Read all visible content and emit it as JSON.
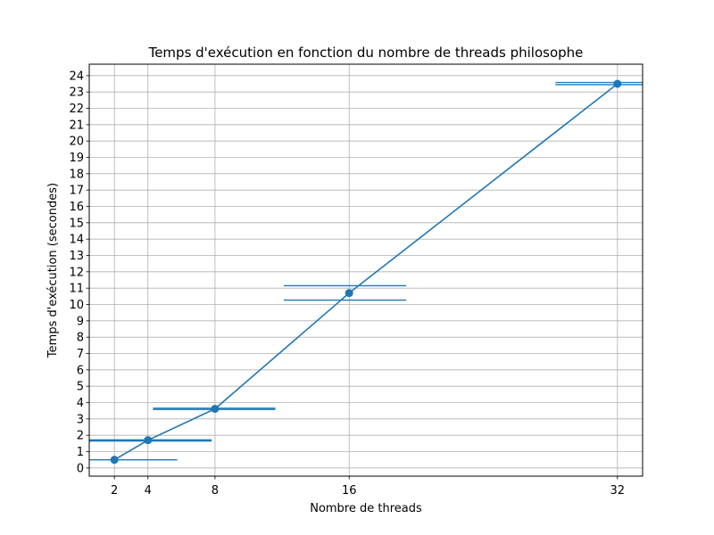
{
  "chart_data": {
    "type": "line",
    "title": "Temps d'exécution en fonction du nombre de threads philosophe",
    "xlabel": "Nombre de threads",
    "ylabel": "Temps d'exécution (secondes)",
    "xlim": [
      0.5,
      33.5
    ],
    "ylim": [
      -0.5,
      24.7
    ],
    "x_ticks": [
      2,
      4,
      8,
      16,
      32
    ],
    "y_ticks": [
      0,
      1,
      2,
      3,
      4,
      5,
      6,
      7,
      8,
      9,
      10,
      11,
      12,
      13,
      14,
      15,
      16,
      17,
      18,
      19,
      20,
      21,
      22,
      23,
      24
    ],
    "grid": true,
    "series": [
      {
        "color": "#1f77b4",
        "marker": "circle",
        "x": [
          2,
          4,
          8,
          16,
          32
        ],
        "y": [
          0.5,
          1.7,
          3.62,
          10.7,
          23.5
        ]
      }
    ],
    "horizontal_bars": [
      {
        "y": 0.5,
        "x_start": 0.5,
        "x_end": 5.75
      },
      {
        "y": 1.65,
        "x_start": 0.5,
        "x_end": 7.8
      },
      {
        "y": 1.72,
        "x_start": 0.5,
        "x_end": 7.8
      },
      {
        "y": 3.58,
        "x_start": 4.3,
        "x_end": 11.6
      },
      {
        "y": 3.66,
        "x_start": 4.3,
        "x_end": 11.6
      },
      {
        "y": 10.27,
        "x_start": 12.1,
        "x_end": 19.4
      },
      {
        "y": 11.15,
        "x_start": 12.1,
        "x_end": 19.4
      },
      {
        "y": 23.45,
        "x_start": 28.3,
        "x_end": 33.5
      },
      {
        "y": 23.58,
        "x_start": 28.3,
        "x_end": 33.5
      }
    ]
  }
}
